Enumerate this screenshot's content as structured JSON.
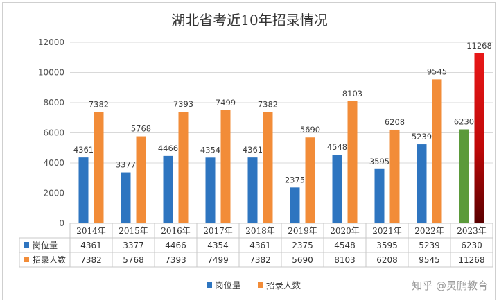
{
  "watermark": "知乎 @灵鹏教育",
  "chart_data": {
    "type": "bar",
    "title": "湖北省考近10年招录情况",
    "categories": [
      "2014年",
      "2015年",
      "2016年",
      "2017年",
      "2018年",
      "2019年",
      "2020年",
      "2021年",
      "2022年",
      "2023年"
    ],
    "series": [
      {
        "name": "岗位量",
        "color": "#2E75C0",
        "values": [
          4361,
          3377,
          4466,
          4354,
          4361,
          2375,
          4548,
          3595,
          5239,
          6230
        ]
      },
      {
        "name": "招录人数",
        "color": "#F28C38",
        "values": [
          7382,
          5768,
          7393,
          7499,
          7382,
          5690,
          8103,
          6208,
          9545,
          11268
        ]
      }
    ],
    "highlight": {
      "category": "2023年",
      "series_colors": [
        "#5B9A3A",
        "#E01010"
      ]
    },
    "ylim": [
      0,
      12000
    ],
    "yticks": [
      0,
      2000,
      4000,
      6000,
      8000,
      10000,
      12000
    ],
    "grid": true,
    "data_table": true,
    "legend_position": "bottom"
  }
}
